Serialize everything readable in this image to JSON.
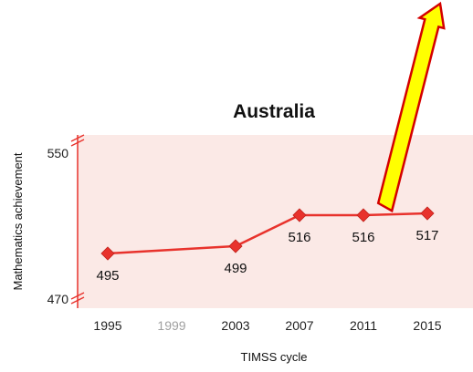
{
  "chart_data": {
    "type": "line",
    "title": "Australia",
    "xlabel": "TIMSS cycle",
    "ylabel": "Mathematics achievement",
    "x_ticks": [
      "1995",
      "1999",
      "2003",
      "2007",
      "2011",
      "2015"
    ],
    "x_ticks_muted": [
      "1999"
    ],
    "y_ticks": [
      550,
      470
    ],
    "ylim": [
      465,
      560
    ],
    "series": [
      {
        "x": [
          "1995",
          "2003",
          "2007",
          "2011",
          "2015"
        ],
        "values": [
          495,
          499,
          516,
          516,
          517
        ],
        "labels": [
          "495",
          "499",
          "516",
          "516",
          "517"
        ]
      }
    ],
    "colors": {
      "line": "#e8322c",
      "marker": "#e8322c",
      "plot_background": "#fbe9e6",
      "arrow_fill": "#ffff00",
      "arrow_stroke": "#d40000"
    },
    "grid": false,
    "legend": "none",
    "annotation": "arrow-pointing-up-from-2011"
  }
}
